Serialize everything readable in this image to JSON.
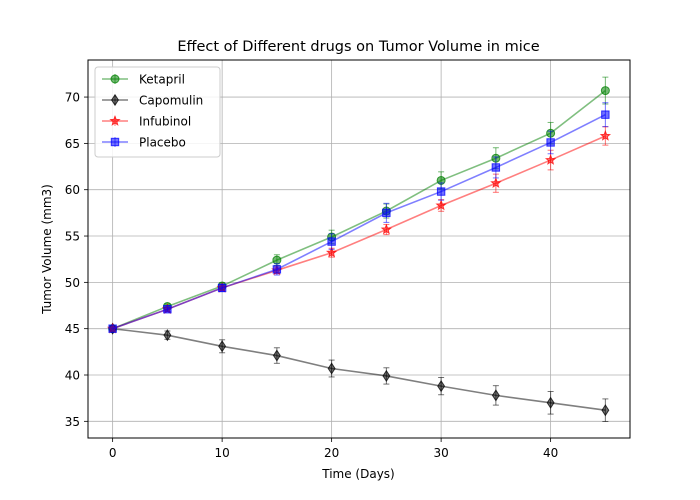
{
  "chart_data": {
    "type": "line",
    "title": "Effect of Different drugs on Tumor Volume in mice",
    "xlabel": "Time (Days)",
    "ylabel": "Tumor Volume (mm3)",
    "xlim": [
      -2.25,
      47.25
    ],
    "ylim": [
      33.2,
      74.0
    ],
    "xticks": [
      0,
      10,
      20,
      30,
      40
    ],
    "yticks": [
      35,
      40,
      45,
      50,
      55,
      60,
      65,
      70
    ],
    "grid": true,
    "legend_position": "top-left",
    "x": [
      0,
      5,
      10,
      15,
      20,
      25,
      30,
      35,
      40,
      45
    ],
    "series": [
      {
        "name": "Ketapril",
        "color": "#008000",
        "marker": "circle",
        "values": [
          45.0,
          47.4,
          49.6,
          52.4,
          54.9,
          57.7,
          61.0,
          63.4,
          66.1,
          70.7
        ],
        "errors": [
          0.0,
          0.26,
          0.36,
          0.58,
          0.73,
          0.76,
          0.93,
          1.13,
          1.16,
          1.45
        ]
      },
      {
        "name": "Capomulin",
        "color": "#000000",
        "marker": "diamond",
        "values": [
          45.0,
          44.3,
          43.1,
          42.1,
          40.7,
          39.9,
          38.8,
          37.8,
          37.0,
          36.2
        ],
        "errors": [
          0.0,
          0.45,
          0.7,
          0.84,
          0.91,
          0.88,
          0.93,
          1.05,
          1.22,
          1.22
        ]
      },
      {
        "name": "Infubinol",
        "color": "#ff0000",
        "marker": "star",
        "values": [
          45.0,
          47.1,
          49.4,
          51.3,
          53.2,
          55.7,
          58.3,
          60.7,
          63.2,
          65.8
        ],
        "errors": [
          0.0,
          0.24,
          0.28,
          0.36,
          0.48,
          0.55,
          0.63,
          0.98,
          1.06,
          0.99
        ]
      },
      {
        "name": "Placebo",
        "color": "#0000ff",
        "marker": "square",
        "values": [
          45.0,
          47.1,
          49.4,
          51.4,
          54.4,
          57.5,
          59.8,
          62.4,
          65.1,
          68.1
        ],
        "errors": [
          0.0,
          0.22,
          0.4,
          0.61,
          0.84,
          1.03,
          0.93,
          1.13,
          1.22,
          1.29
        ]
      }
    ]
  }
}
